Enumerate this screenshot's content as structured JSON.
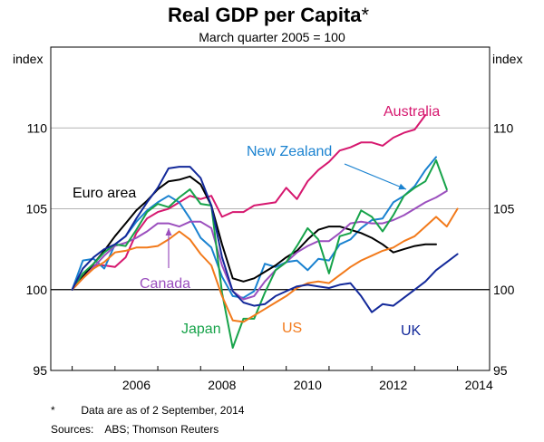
{
  "chart_data": {
    "type": "line",
    "title": "Real GDP per Capita",
    "title_marker": "*",
    "subtitle": "March quarter 2005 = 100",
    "ylabel_left": "index",
    "ylabel_right": "index",
    "ylim": [
      95,
      115
    ],
    "yticks": [
      95,
      100,
      105,
      110
    ],
    "xlim": [
      2004.5,
      2014.75
    ],
    "xticks": [
      2006,
      2008,
      2010,
      2012,
      2014
    ],
    "grid": true,
    "reference_line": 100,
    "x": [
      2005.0,
      2005.25,
      2005.5,
      2005.75,
      2006.0,
      2006.25,
      2006.5,
      2006.75,
      2007.0,
      2007.25,
      2007.5,
      2007.75,
      2008.0,
      2008.25,
      2008.5,
      2008.75,
      2009.0,
      2009.25,
      2009.5,
      2009.75,
      2010.0,
      2010.25,
      2010.5,
      2010.75,
      2011.0,
      2011.25,
      2011.5,
      2011.75,
      2012.0,
      2012.25,
      2012.5,
      2012.75,
      2013.0,
      2013.25,
      2013.5,
      2013.75,
      2014.0
    ],
    "series": [
      {
        "name": "Australia",
        "color": "#d6186f",
        "values": [
          100.0,
          100.8,
          101.5,
          101.5,
          101.4,
          102.0,
          103.5,
          104.4,
          104.8,
          105.0,
          105.4,
          105.8,
          105.6,
          105.8,
          104.5,
          104.8,
          104.8,
          105.2,
          105.3,
          105.4,
          106.3,
          105.6,
          106.7,
          107.4,
          107.9,
          108.6,
          108.8,
          109.1,
          109.1,
          108.9,
          109.4,
          109.7,
          109.9,
          110.8,
          null,
          null,
          null
        ]
      },
      {
        "name": "New Zealand",
        "color": "#1a82d0",
        "values": [
          100.0,
          101.8,
          101.9,
          101.3,
          102.8,
          103.3,
          104.2,
          104.9,
          105.4,
          105.8,
          105.4,
          104.4,
          103.2,
          102.6,
          100.8,
          99.6,
          99.5,
          99.9,
          101.6,
          101.4,
          101.7,
          101.8,
          101.2,
          101.9,
          101.8,
          102.8,
          103.1,
          103.8,
          104.3,
          104.4,
          105.4,
          105.8,
          106.4,
          107.4,
          108.2,
          null,
          null
        ]
      },
      {
        "name": "Euro area",
        "color": "#000000",
        "values": [
          100.0,
          100.8,
          101.6,
          102.4,
          103.3,
          104.1,
          104.9,
          105.5,
          106.2,
          106.7,
          106.8,
          107.0,
          106.5,
          105.2,
          102.8,
          100.7,
          100.5,
          100.7,
          101.1,
          101.5,
          102.0,
          102.4,
          103.1,
          103.7,
          103.9,
          103.9,
          103.7,
          103.5,
          103.2,
          102.8,
          102.3,
          102.5,
          102.7,
          102.8,
          102.8,
          null,
          null
        ]
      },
      {
        "name": "Canada",
        "color": "#9b4fbe",
        "values": [
          100.0,
          100.7,
          101.4,
          102.1,
          102.7,
          102.9,
          103.2,
          103.6,
          104.1,
          104.1,
          103.9,
          104.2,
          104.2,
          103.8,
          101.5,
          99.9,
          99.4,
          99.6,
          100.5,
          101.2,
          101.7,
          102.3,
          102.7,
          103.0,
          103.0,
          103.5,
          104.1,
          104.2,
          104.1,
          104.1,
          104.3,
          104.6,
          105.0,
          105.4,
          105.7,
          106.1,
          null
        ]
      },
      {
        "name": "Japan",
        "color": "#17a34a",
        "values": [
          100.0,
          101.0,
          101.6,
          102.3,
          102.8,
          102.7,
          103.7,
          104.8,
          105.3,
          105.1,
          105.7,
          106.2,
          105.3,
          105.2,
          99.8,
          96.4,
          98.2,
          98.2,
          99.8,
          101.2,
          101.7,
          102.7,
          103.8,
          103.1,
          101.0,
          103.3,
          103.5,
          104.9,
          104.5,
          103.6,
          104.6,
          105.8,
          106.3,
          106.7,
          108.0,
          106.2,
          null
        ]
      },
      {
        "name": "US",
        "color": "#f27a1b",
        "values": [
          100.0,
          100.7,
          101.3,
          101.7,
          102.3,
          102.4,
          102.6,
          102.6,
          102.7,
          103.1,
          103.6,
          103.1,
          102.2,
          101.5,
          99.6,
          98.1,
          98.0,
          98.4,
          98.8,
          99.2,
          99.6,
          100.1,
          100.4,
          100.5,
          100.4,
          100.9,
          101.4,
          101.8,
          102.1,
          102.4,
          102.6,
          103.0,
          103.3,
          103.9,
          104.5,
          103.9,
          105.0
        ]
      },
      {
        "name": "UK",
        "color": "#13299a",
        "values": [
          100.0,
          101.3,
          102.0,
          102.5,
          102.8,
          103.3,
          104.4,
          105.4,
          106.3,
          107.5,
          107.6,
          107.6,
          106.9,
          105.2,
          102.0,
          99.9,
          99.2,
          99.0,
          99.1,
          99.6,
          99.9,
          100.2,
          100.3,
          100.2,
          100.1,
          100.3,
          100.4,
          99.6,
          98.6,
          99.1,
          99.0,
          99.5,
          100.0,
          100.5,
          101.2,
          101.7,
          102.2
        ]
      }
    ],
    "series_labels": [
      {
        "name": "Australia",
        "text": "Australia",
        "color": "#d6186f"
      },
      {
        "name": "New Zealand",
        "text": "New Zealand",
        "color": "#1a82d0"
      },
      {
        "name": "Euro area",
        "text": "Euro area",
        "color": "#000000"
      },
      {
        "name": "Canada",
        "text": "Canada",
        "color": "#9b4fbe"
      },
      {
        "name": "Japan",
        "text": "Japan",
        "color": "#17a34a"
      },
      {
        "name": "US",
        "text": "US",
        "color": "#f27a1b"
      },
      {
        "name": "UK",
        "text": "UK",
        "color": "#13299a"
      }
    ]
  },
  "notes": {
    "footnote_marker": "*",
    "footnote_text": "Data are as of 2 September, 2014",
    "sources_label": "Sources:",
    "sources_text": "ABS; Thomson Reuters"
  }
}
